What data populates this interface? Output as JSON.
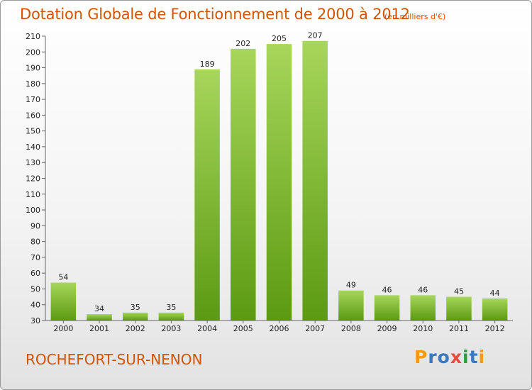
{
  "chart_data": {
    "type": "bar",
    "title": "Dotation Globale de Fonctionnement de 2000 à 2012",
    "subtitle": "(en milliers d'€)",
    "categories": [
      "2000",
      "2001",
      "2002",
      "2003",
      "2004",
      "2005",
      "2006",
      "2007",
      "2008",
      "2009",
      "2010",
      "2011",
      "2012"
    ],
    "values": [
      54,
      34,
      35,
      35,
      189,
      202,
      205,
      207,
      49,
      46,
      46,
      45,
      44
    ],
    "ylim": [
      30,
      210
    ],
    "yticks": [
      30,
      40,
      50,
      60,
      70,
      80,
      90,
      100,
      110,
      120,
      130,
      140,
      150,
      160,
      170,
      180,
      190,
      200,
      210
    ],
    "xlabel": "",
    "ylabel": "",
    "grid": false,
    "colors": {
      "bar_top": "#a6d65a",
      "bar_bottom": "#5c9a12",
      "text_accent": "#d35400"
    }
  },
  "footer": {
    "commune": "ROCHEFORT-SUR-NENON",
    "logo_letters": [
      {
        "char": "P",
        "color": "#f39c12"
      },
      {
        "char": "r",
        "color": "#3a78c2"
      },
      {
        "char": "o",
        "color": "#3a78c2"
      },
      {
        "char": "x",
        "color": "#e74c3c"
      },
      {
        "char": "i",
        "color": "#2e9b3e"
      },
      {
        "char": "t",
        "color": "#3a78c2"
      },
      {
        "char": "i",
        "color": "#f39c12"
      }
    ]
  }
}
